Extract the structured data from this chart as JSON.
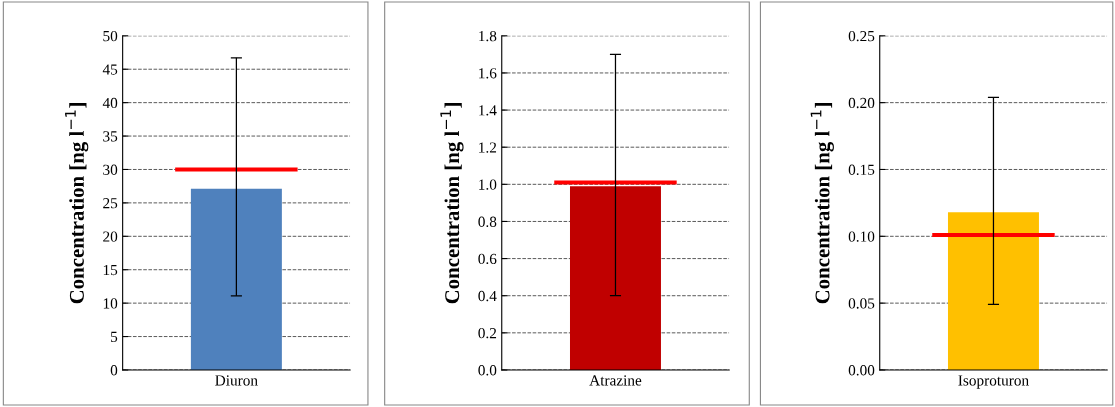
{
  "chart_data": [
    {
      "type": "bar",
      "categories": [
        "Diuron"
      ],
      "values": [
        27.1
      ],
      "colors": [
        "#4f81bd"
      ],
      "errors": [
        [
          11.1,
          46.7
        ]
      ],
      "ylabel": "Concentration [ng l$^{−1}$]",
      "ylim": [
        0,
        50
      ],
      "yticks": [
        0,
        5,
        10,
        15,
        20,
        25,
        30,
        35,
        40,
        45,
        50
      ],
      "grid": "y",
      "ref_lines": [
        {
          "axis": "y",
          "value": 30,
          "color": "#ff0000"
        }
      ]
    },
    {
      "type": "bar",
      "categories": [
        "Atrazine"
      ],
      "values": [
        0.99
      ],
      "colors": [
        "#c00000"
      ],
      "errors": [
        [
          0.4,
          1.7
        ]
      ],
      "ylabel": "Concentration [ng l$^{−1}$]",
      "ylim": [
        0,
        1.8
      ],
      "yticks": [
        {
          "value": 0,
          "label": "0.0"
        },
        {
          "value": 0.2,
          "label": "0.2"
        },
        {
          "value": 0.4,
          "label": "0.4"
        },
        {
          "value": 0.6,
          "label": "0.6"
        },
        {
          "value": 0.8,
          "label": "0.8"
        },
        {
          "value": 1.0,
          "label": "1.0"
        },
        {
          "value": 1.2,
          "label": "1.2"
        },
        {
          "value": 1.4,
          "label": "1.4"
        },
        {
          "value": 1.6,
          "label": "1.6"
        },
        {
          "value": 1.8,
          "label": "1.8"
        }
      ],
      "grid": "y",
      "ref_lines": [
        {
          "axis": "y",
          "value": 1.01,
          "color": "#ff0000"
        }
      ]
    },
    {
      "type": "bar",
      "categories": [
        "Isoproturon"
      ],
      "values": [
        0.118
      ],
      "colors": [
        "#ffc000"
      ],
      "errors": [
        [
          0.049,
          0.204
        ]
      ],
      "ylabel": "Concentration [ng l$^{−1}$]",
      "ylim": [
        0,
        0.25
      ],
      "yticks": [
        {
          "value": 0,
          "label": "0.00"
        },
        {
          "value": 0.05,
          "label": "0.05"
        },
        {
          "value": 0.1,
          "label": "0.10"
        },
        {
          "value": 0.15,
          "label": "0.15"
        },
        {
          "value": 0.2,
          "label": "0.20"
        },
        {
          "value": 0.25,
          "label": "0.25"
        }
      ],
      "grid": "y",
      "ref_lines": [
        {
          "axis": "y",
          "value": 0.101,
          "color": "#ff0000"
        }
      ]
    }
  ]
}
